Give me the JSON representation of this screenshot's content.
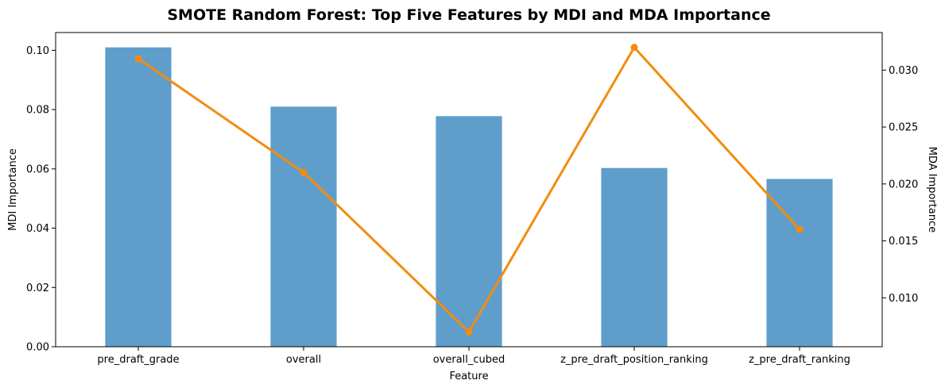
{
  "chart_data": {
    "type": "bar",
    "title": "SMOTE Random Forest: Top Five Features by MDI and MDA Importance",
    "xlabel": "Feature",
    "ylabel": "MDI Importance",
    "y2label": "MDA Importance",
    "categories": [
      "pre_draft_grade",
      "overall",
      "overall_cubed",
      "z_pre_draft_position_ranking",
      "z_pre_draft_ranking"
    ],
    "series": [
      {
        "type": "bar",
        "axis": "left",
        "color": "#5f9ecb",
        "values": [
          0.101,
          0.081,
          0.0778,
          0.0603,
          0.0566
        ]
      },
      {
        "type": "line",
        "axis": "right",
        "color": "#f28c0f",
        "values": [
          0.031,
          0.021,
          0.007,
          0.032,
          0.016
        ]
      }
    ],
    "ylim": [
      0,
      0.106
    ],
    "y2lim": [
      0.0057,
      0.0333
    ],
    "yticks": [
      0.0,
      0.02,
      0.04,
      0.06,
      0.08,
      0.1
    ],
    "ytick_labels": [
      "0.00",
      "0.02",
      "0.04",
      "0.06",
      "0.08",
      "0.10"
    ],
    "y2ticks": [
      0.01,
      0.015,
      0.02,
      0.025,
      0.03
    ],
    "y2tick_labels": [
      "0.010",
      "0.015",
      "0.020",
      "0.025",
      "0.030"
    ],
    "grid": false,
    "legend": "none"
  }
}
